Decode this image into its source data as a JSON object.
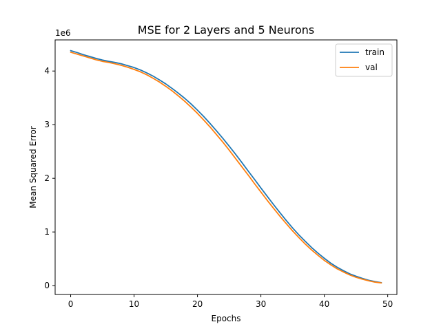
{
  "chart_data": {
    "type": "line",
    "title": "MSE for 2 Layers and 5 Neurons",
    "xlabel": "Epochs",
    "ylabel": "Mean Squared Error",
    "xlim": [
      -2.45,
      51.45
    ],
    "ylim": [
      -0.165,
      4.58
    ],
    "xticks": [
      0,
      10,
      20,
      30,
      40,
      50
    ],
    "yticks": [
      0,
      1,
      2,
      3,
      4
    ],
    "y_offset_label": "1e6",
    "legend_position": "top-right",
    "series": [
      {
        "name": "train",
        "color": "#1f77b4",
        "x": [
          0,
          1,
          2,
          3,
          4,
          5,
          6,
          7,
          8,
          9,
          10,
          11,
          12,
          13,
          14,
          15,
          16,
          17,
          18,
          19,
          20,
          21,
          22,
          23,
          24,
          25,
          26,
          27,
          28,
          29,
          30,
          31,
          32,
          33,
          34,
          35,
          36,
          37,
          38,
          39,
          40,
          41,
          42,
          43,
          44,
          45,
          46,
          47,
          48,
          49
        ],
        "values": [
          4.38,
          4.345,
          4.305,
          4.27,
          4.235,
          4.205,
          4.18,
          4.16,
          4.135,
          4.1,
          4.065,
          4.02,
          3.965,
          3.905,
          3.835,
          3.76,
          3.675,
          3.585,
          3.49,
          3.385,
          3.27,
          3.15,
          3.02,
          2.885,
          2.745,
          2.6,
          2.45,
          2.295,
          2.135,
          1.98,
          1.82,
          1.665,
          1.51,
          1.36,
          1.215,
          1.075,
          0.945,
          0.825,
          0.71,
          0.605,
          0.51,
          0.42,
          0.345,
          0.28,
          0.22,
          0.175,
          0.135,
          0.1,
          0.075,
          0.055
        ]
      },
      {
        "name": "val",
        "color": "#ff7f0e",
        "x": [
          0,
          1,
          2,
          3,
          4,
          5,
          6,
          7,
          8,
          9,
          10,
          11,
          12,
          13,
          14,
          15,
          16,
          17,
          18,
          19,
          20,
          21,
          22,
          23,
          24,
          25,
          26,
          27,
          28,
          29,
          30,
          31,
          32,
          33,
          34,
          35,
          36,
          37,
          38,
          39,
          40,
          41,
          42,
          43,
          44,
          45,
          46,
          47,
          48,
          49
        ],
        "values": [
          4.35,
          4.315,
          4.28,
          4.245,
          4.21,
          4.18,
          4.16,
          4.135,
          4.105,
          4.07,
          4.03,
          3.985,
          3.93,
          3.865,
          3.795,
          3.715,
          3.63,
          3.535,
          3.435,
          3.325,
          3.21,
          3.085,
          2.955,
          2.815,
          2.675,
          2.525,
          2.37,
          2.215,
          2.06,
          1.9,
          1.745,
          1.59,
          1.44,
          1.295,
          1.155,
          1.02,
          0.895,
          0.775,
          0.665,
          0.565,
          0.47,
          0.39,
          0.315,
          0.255,
          0.2,
          0.155,
          0.12,
          0.09,
          0.065,
          0.05
        ]
      }
    ]
  }
}
